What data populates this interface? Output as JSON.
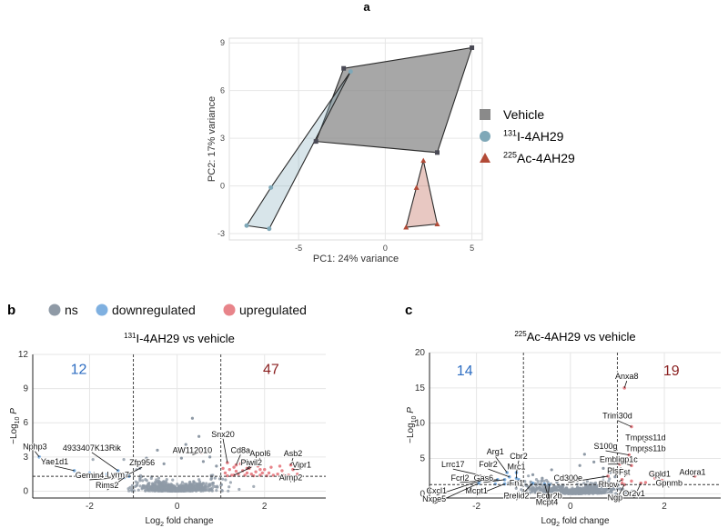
{
  "panel_labels": {
    "a": "a",
    "b": "b",
    "c": "c"
  },
  "colors": {
    "vehicle": "#8a8a8a",
    "i131": "#7fa8b8",
    "ac225": "#b24a36",
    "ns": "#8f9aa6",
    "down": "#7fb0e0",
    "up": "#e8848a",
    "grid": "#e6e6e6",
    "count_down": "#2d6dc2",
    "count_up": "#8a1f1f"
  },
  "chart_data": [
    {
      "id": "pca",
      "type": "scatter",
      "title": "",
      "xlabel": "PC1: 24% variance",
      "ylabel": "PC2: 17% variance",
      "xlim": [
        -9,
        5.6
      ],
      "ylim": [
        -3.4,
        9.3
      ],
      "xticks": [
        -5,
        0,
        5
      ],
      "yticks": [
        -3,
        0,
        3,
        6,
        9
      ],
      "legend": [
        {
          "label": "Vehicle",
          "key": "vehicle",
          "shape": "square"
        },
        {
          "label_sup": "131",
          "label": "I-4AH29",
          "key": "i131",
          "shape": "circle"
        },
        {
          "label_sup": "225",
          "label": "Ac-4AH29",
          "key": "ac225",
          "shape": "triangle"
        }
      ],
      "series": [
        {
          "name": "Vehicle",
          "key": "vehicle",
          "shape": "square",
          "hull_opacity": 0.75,
          "points": [
            [
              -2.4,
              7.4
            ],
            [
              5.0,
              8.7
            ],
            [
              3.0,
              2.1
            ],
            [
              -4.0,
              2.8
            ]
          ]
        },
        {
          "name": "131I-4AH29",
          "key": "i131",
          "shape": "circle",
          "hull_opacity": 0.3,
          "points": [
            [
              -8.0,
              -2.5
            ],
            [
              -6.6,
              -0.1
            ],
            [
              -2.0,
              7.2
            ],
            [
              -6.7,
              -2.7
            ]
          ]
        },
        {
          "name": "225Ac-4AH29",
          "key": "ac225",
          "shape": "triangle",
          "hull_opacity": 0.3,
          "points": [
            [
              2.2,
              1.6
            ],
            [
              3.0,
              -2.4
            ],
            [
              1.2,
              -2.6
            ],
            [
              1.8,
              -0.1
            ]
          ]
        }
      ]
    },
    {
      "id": "volcano-131",
      "type": "scatter",
      "title_sup": "131",
      "title": "I-4AH29 vs vehicle",
      "xlabel": "Log2 fold change",
      "ylabel": "-Log10 P",
      "xlim": [
        -3.3,
        3.4
      ],
      "ylim": [
        -0.6,
        12
      ],
      "xticks": [
        -2,
        0,
        2
      ],
      "yticks": [
        0,
        3,
        6,
        9,
        12
      ],
      "fc_lines": [
        -1,
        1
      ],
      "p_line": 1.3,
      "count_down": "12",
      "count_up": "47",
      "legend": [
        {
          "label": "ns",
          "key": "ns"
        },
        {
          "label": "downregulated",
          "key": "down"
        },
        {
          "label": "upregulated",
          "key": "up"
        }
      ],
      "labels": [
        {
          "text": "Nphp3",
          "x": -3.15,
          "y": 3.0,
          "tx": -3.25,
          "ty": 3.5
        },
        {
          "text": "Yae1d1",
          "x": -2.35,
          "y": 1.8,
          "tx": -2.8,
          "ty": 2.2
        },
        {
          "text": "4933407K13Rik",
          "x": -1.35,
          "y": 1.8,
          "tx": -1.95,
          "ty": 3.4
        },
        {
          "text": "Gemin4",
          "x": -1.25,
          "y": 1.2,
          "tx": -2.0,
          "ty": 1.0
        },
        {
          "text": "Zfp956",
          "x": -1.15,
          "y": 1.4,
          "tx": -0.8,
          "ty": 2.1
        },
        {
          "text": "Lyrm7",
          "x": -1.1,
          "y": 1.3,
          "tx": -1.35,
          "ty": 1.05
        },
        {
          "text": "Rims2",
          "x": -1.2,
          "y": 1.2,
          "tx": -1.6,
          "ty": 0.1
        },
        {
          "text": "AW112010",
          "x": 0.55,
          "y": 3.4,
          "tx": 0.35,
          "ty": 3.2
        },
        {
          "text": "Snx20",
          "x": 1.15,
          "y": 2.5,
          "tx": 1.05,
          "ty": 4.6
        },
        {
          "text": "Cd8a",
          "x": 1.35,
          "y": 2.3,
          "tx": 1.45,
          "ty": 3.2
        },
        {
          "text": "Apol6",
          "x": 1.6,
          "y": 2.0,
          "tx": 1.9,
          "ty": 2.9
        },
        {
          "text": "Piwil2",
          "x": 1.3,
          "y": 1.4,
          "tx": 1.7,
          "ty": 2.1
        },
        {
          "text": "Asb2",
          "x": 2.6,
          "y": 2.3,
          "tx": 2.65,
          "ty": 2.9
        },
        {
          "text": "Vipr1",
          "x": 2.65,
          "y": 1.9,
          "tx": 2.85,
          "ty": 1.9
        },
        {
          "text": "Aimp2",
          "x": 2.55,
          "y": 1.4,
          "tx": 2.6,
          "ty": 0.8
        }
      ]
    },
    {
      "id": "volcano-225",
      "type": "scatter",
      "title_sup": "225",
      "title": "Ac-4AH29 vs vehicle",
      "xlabel": "Log2 fold change",
      "ylabel": "-Log10 P",
      "xlim": [
        -3.0,
        3.2
      ],
      "ylim": [
        -0.6,
        20
      ],
      "xticks": [
        -2,
        0,
        2
      ],
      "yticks": [
        0,
        5,
        10,
        15,
        20
      ],
      "fc_lines": [
        -1,
        1
      ],
      "p_line": 1.3,
      "count_down": "14",
      "count_up": "19",
      "labels": [
        {
          "text": "Anxa8",
          "x": 1.15,
          "y": 15.0,
          "tx": 1.2,
          "ty": 16.0
        },
        {
          "text": "Trim30d",
          "x": 1.3,
          "y": 9.5,
          "tx": 1.0,
          "ty": 10.4
        },
        {
          "text": "Tmprss11d",
          "x": 1.4,
          "y": 8.0,
          "tx": 1.6,
          "ty": 7.3
        },
        {
          "text": "Tmprss11b",
          "x": 1.5,
          "y": 6.5,
          "tx": 1.6,
          "ty": 5.8
        },
        {
          "text": "S100g",
          "x": 1.25,
          "y": 5.5,
          "tx": 0.75,
          "ty": 6.1
        },
        {
          "text": "Emb",
          "x": 1.05,
          "y": 4.2,
          "tx": 0.8,
          "ty": 4.2
        },
        {
          "text": "Iigp1c",
          "x": 1.3,
          "y": 4.0,
          "tx": 1.2,
          "ty": 4.2
        },
        {
          "text": "Pls1",
          "x": 1.05,
          "y": 3.0,
          "tx": 0.95,
          "ty": 2.6
        },
        {
          "text": "Fst",
          "x": 1.2,
          "y": 2.8,
          "tx": 1.15,
          "ty": 2.4
        },
        {
          "text": "Cd300e",
          "x": 0.8,
          "y": 2.5,
          "tx": -0.05,
          "ty": 1.6
        },
        {
          "text": "Rhov",
          "x": 1.1,
          "y": 2.0,
          "tx": 0.8,
          "ty": 0.7
        },
        {
          "text": "Gpld1",
          "x": 1.75,
          "y": 2.8,
          "tx": 1.9,
          "ty": 2.2
        },
        {
          "text": "Adora1",
          "x": 2.65,
          "y": 2.5,
          "tx": 2.6,
          "ty": 2.4
        },
        {
          "text": "Gpnmb",
          "x": 1.95,
          "y": 1.9,
          "tx": 2.1,
          "ty": 0.9
        },
        {
          "text": "Or2v1",
          "x": 1.5,
          "y": 1.5,
          "tx": 1.35,
          "ty": -0.6
        },
        {
          "text": "Ngp",
          "x": 1.15,
          "y": 1.3,
          "tx": 0.95,
          "ty": -1.2
        },
        {
          "text": "Arg1",
          "x": -1.35,
          "y": 3.0,
          "tx": -1.6,
          "ty": 5.3
        },
        {
          "text": "Cbr2",
          "x": -1.15,
          "y": 3.0,
          "tx": -1.1,
          "ty": 4.7
        },
        {
          "text": "Lrrc17",
          "x": -1.7,
          "y": 2.3,
          "tx": -2.5,
          "ty": 3.5
        },
        {
          "text": "Folr2",
          "x": -1.3,
          "y": 2.4,
          "tx": -1.75,
          "ty": 3.5
        },
        {
          "text": "Mrc1",
          "x": -1.15,
          "y": 2.2,
          "tx": -1.15,
          "ty": 3.2
        },
        {
          "text": "Fcrl2",
          "x": -1.55,
          "y": 2.0,
          "tx": -2.35,
          "ty": 1.6
        },
        {
          "text": "Gas6",
          "x": -1.4,
          "y": 2.0,
          "tx": -1.85,
          "ty": 1.6
        },
        {
          "text": "Fn1",
          "x": -1.1,
          "y": 2.0,
          "tx": -1.15,
          "ty": 0.9
        },
        {
          "text": "Cxcl1",
          "x": -1.9,
          "y": 1.9,
          "tx": -2.85,
          "ty": -0.2
        },
        {
          "text": "Mcpt1",
          "x": -1.4,
          "y": 1.4,
          "tx": -2.0,
          "ty": -0.2
        },
        {
          "text": "Prelid2",
          "x": -0.8,
          "y": 1.5,
          "tx": -1.15,
          "ty": -0.9
        },
        {
          "text": "Fcgr2b",
          "x": -0.55,
          "y": 1.4,
          "tx": -0.45,
          "ty": -0.9
        },
        {
          "text": "Nxpe5",
          "x": -1.95,
          "y": 1.5,
          "tx": -2.9,
          "ty": -1.4
        },
        {
          "text": "Mcpt4",
          "x": -0.45,
          "y": 1.3,
          "tx": -0.5,
          "ty": -1.8
        }
      ]
    }
  ]
}
